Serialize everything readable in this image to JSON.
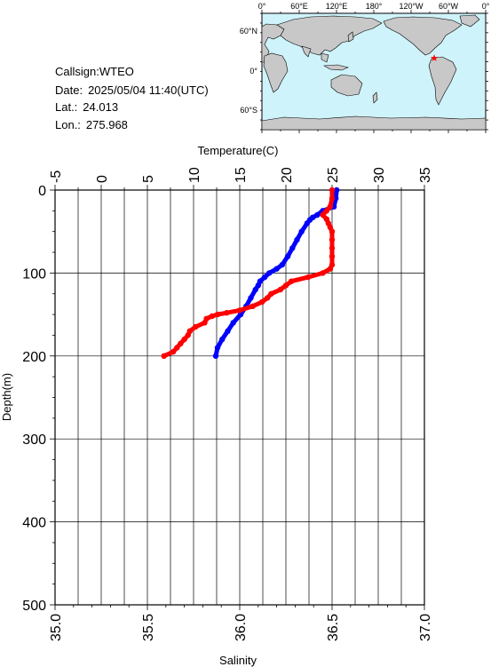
{
  "info": {
    "callsign_label": "Callsign:",
    "callsign": "WTEO",
    "date_label": "Date:",
    "date": "2025/05/04 11:40(UTC)",
    "lat_label": "Lat.:",
    "lat": "24.013",
    "lon_label": "Lon.:",
    "lon": "275.968"
  },
  "map": {
    "lon_ticks": [
      "0°",
      "60°E",
      "120°E",
      "180°",
      "120°W",
      "60°W",
      "0°"
    ],
    "lat_ticks": [
      "60°N",
      "0°",
      "60°S"
    ],
    "ocean_color": "#cff3fb",
    "land_color": "#c8c8c8",
    "marker_color": "#ff0000"
  },
  "chart_data": {
    "type": "line",
    "ylabel": "Depth(m)",
    "ylim": [
      500,
      0
    ],
    "y_ticks": [
      "0",
      "100",
      "200",
      "300",
      "400",
      "500"
    ],
    "top_axis": {
      "label": "Temperature(C)",
      "lim": [
        -5,
        35
      ],
      "ticks": [
        "-5",
        "0",
        "5",
        "10",
        "15",
        "20",
        "25",
        "30",
        "35"
      ]
    },
    "bottom_axis": {
      "label": "Salinity",
      "lim": [
        35.0,
        37.0
      ],
      "ticks": [
        "35.0",
        "35.5",
        "36.0",
        "36.5",
        "37.0"
      ]
    },
    "grid": true,
    "series": [
      {
        "axis": "top",
        "color": "#0000ff",
        "depth": [
          0,
          10,
          20,
          25,
          30,
          33,
          36,
          40,
          50,
          60,
          70,
          80,
          90,
          95,
          100,
          105,
          110,
          115,
          120,
          130,
          140,
          150,
          160,
          170,
          180,
          190,
          200
        ],
        "values": [
          25.5,
          25.4,
          25.2,
          24.0,
          23.4,
          22.9,
          22.6,
          22.3,
          21.7,
          21.2,
          20.7,
          20.2,
          19.6,
          19.0,
          18.2,
          17.7,
          17.2,
          17.0,
          16.7,
          16.2,
          15.7,
          15.1,
          14.3,
          13.7,
          13.1,
          12.6,
          12.4
        ]
      },
      {
        "axis": "bottom",
        "color": "#ff0000",
        "depth": [
          0,
          10,
          20,
          25,
          30,
          35,
          40,
          45,
          50,
          60,
          70,
          80,
          90,
          95,
          100,
          105,
          110,
          115,
          120,
          125,
          130,
          135,
          140,
          145,
          148,
          150,
          152,
          155,
          160,
          165,
          170,
          175,
          180,
          185,
          190,
          195,
          200
        ],
        "values": [
          36.5,
          36.5,
          36.49,
          36.47,
          36.45,
          36.47,
          36.48,
          36.49,
          36.5,
          36.5,
          36.5,
          36.5,
          36.5,
          36.49,
          36.45,
          36.37,
          36.28,
          36.25,
          36.22,
          36.17,
          36.15,
          36.12,
          36.07,
          36.0,
          35.93,
          35.88,
          35.85,
          35.82,
          35.81,
          35.76,
          35.73,
          35.72,
          35.7,
          35.68,
          35.66,
          35.64,
          35.59
        ]
      }
    ]
  }
}
